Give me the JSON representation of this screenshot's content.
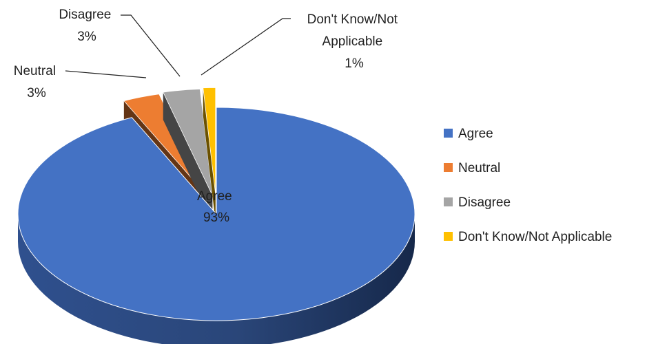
{
  "chart_data": {
    "type": "pie",
    "three_d": true,
    "exploded": true,
    "title": "",
    "legend_position": "right",
    "categories": [
      "Agree",
      "Neutral",
      "Disagree",
      "Don't Know/Not Applicable"
    ],
    "values": [
      93,
      3,
      3,
      1
    ],
    "unit": "%",
    "colors": [
      "#4472C4",
      "#ED7D31",
      "#A5A5A5",
      "#FFC000"
    ],
    "data_labels": [
      {
        "lines": [
          "Agree",
          "93%"
        ]
      },
      {
        "lines": [
          "Neutral",
          "3%"
        ]
      },
      {
        "lines": [
          "Disagree",
          "3%"
        ]
      },
      {
        "lines": [
          "Don't Know/Not",
          "Applicable",
          "1%"
        ]
      }
    ]
  }
}
